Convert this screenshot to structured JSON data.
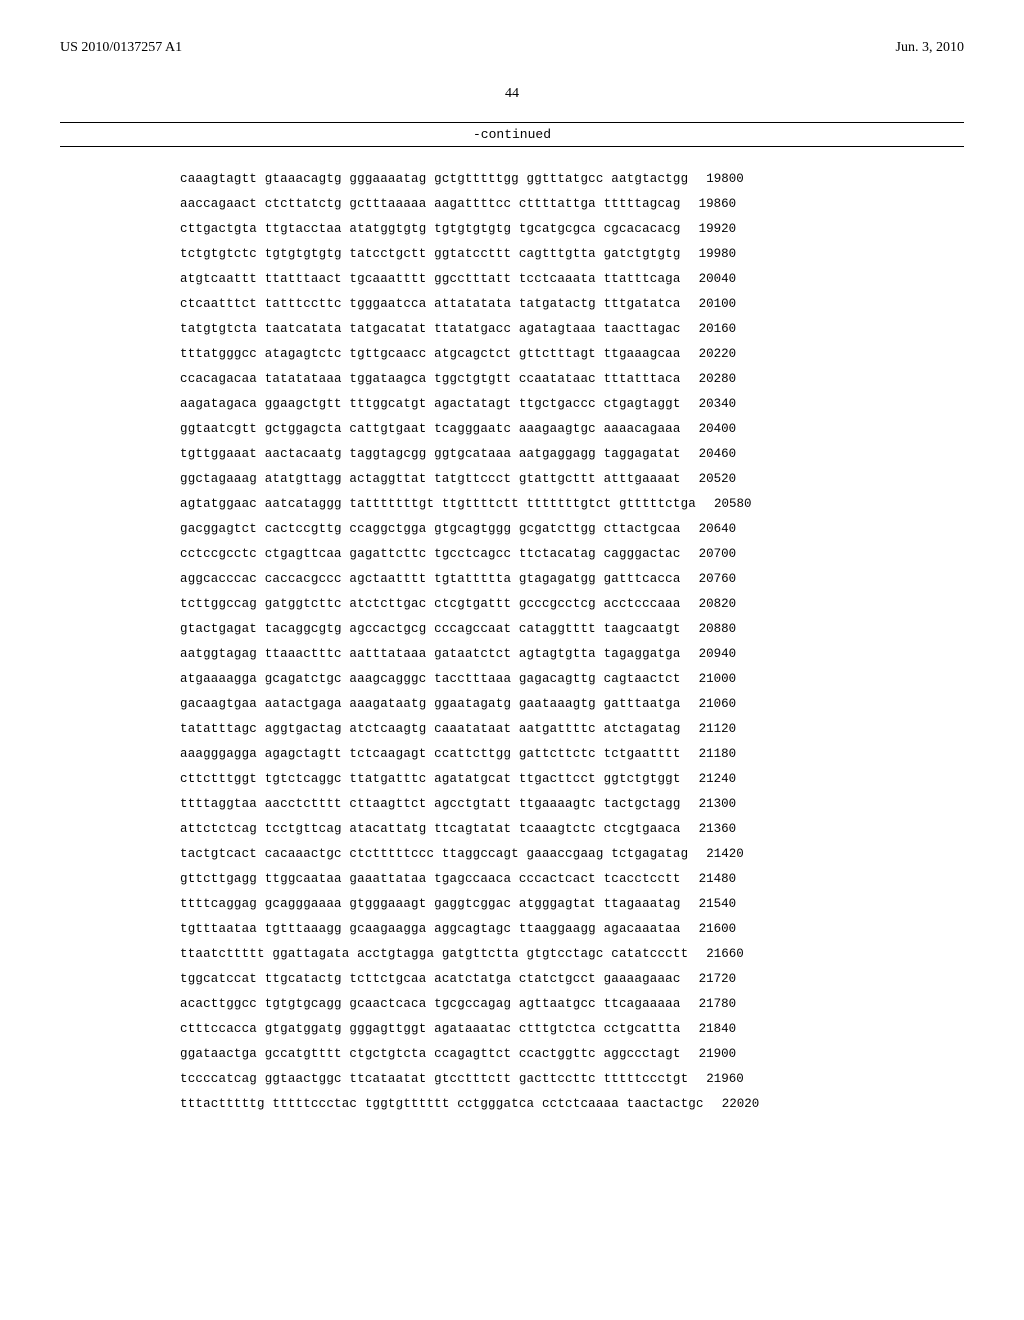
{
  "header": {
    "pub_number": "US 2010/0137257 A1",
    "pub_date": "Jun. 3, 2010"
  },
  "page_number": "44",
  "continued_label": "-continued",
  "sequence": [
    {
      "groups": [
        "caaagtagtt",
        "gtaaacagtg",
        "gggaaaatag",
        "gctgtttttgg",
        "ggtttatgcc",
        "aatgtactgg"
      ],
      "num": "19800"
    },
    {
      "groups": [
        "aaccagaact",
        "ctcttatctg",
        "gctttaaaaa",
        "aagattttcc",
        "cttttattga",
        "tttttagcag"
      ],
      "num": "19860"
    },
    {
      "groups": [
        "cttgactgta",
        "ttgtacctaa",
        "atatggtgtg",
        "tgtgtgtgtg",
        "tgcatgcgca",
        "cgcacacacg"
      ],
      "num": "19920"
    },
    {
      "groups": [
        "tctgtgtctc",
        "tgtgtgtgtg",
        "tatcctgctt",
        "ggtatccttt",
        "cagtttgtta",
        "gatctgtgtg"
      ],
      "num": "19980"
    },
    {
      "groups": [
        "atgtcaattt",
        "ttatttaact",
        "tgcaaatttt",
        "ggcctttatt",
        "tcctcaaata",
        "ttatttcaga"
      ],
      "num": "20040"
    },
    {
      "groups": [
        "ctcaatttct",
        "tatttccttc",
        "tgggaatcca",
        "attatatata",
        "tatgatactg",
        "tttgatatca"
      ],
      "num": "20100"
    },
    {
      "groups": [
        "tatgtgtcta",
        "taatcatata",
        "tatgacatat",
        "ttatatgacc",
        "agatagtaaa",
        "taacttagac"
      ],
      "num": "20160"
    },
    {
      "groups": [
        "tttatgggcc",
        "atagagtctc",
        "tgttgcaacc",
        "atgcagctct",
        "gttctttagt",
        "ttgaaagcaa"
      ],
      "num": "20220"
    },
    {
      "groups": [
        "ccacagacaa",
        "tatatataaa",
        "tggataagca",
        "tggctgtgtt",
        "ccaatataac",
        "tttatttaca"
      ],
      "num": "20280"
    },
    {
      "groups": [
        "aagatagaca",
        "ggaagctgtt",
        "tttggcatgt",
        "agactatagt",
        "ttgctgaccc",
        "ctgagtaggt"
      ],
      "num": "20340"
    },
    {
      "groups": [
        "ggtaatcgtt",
        "gctggagcta",
        "cattgtgaat",
        "tcagggaatc",
        "aaagaagtgc",
        "aaaacagaaa"
      ],
      "num": "20400"
    },
    {
      "groups": [
        "tgttggaaat",
        "aactacaatg",
        "taggtagcgg",
        "ggtgcataaa",
        "aatgaggagg",
        "taggagatat"
      ],
      "num": "20460"
    },
    {
      "groups": [
        "ggctagaaag",
        "atatgttagg",
        "actaggttat",
        "tatgttccct",
        "gtattgcttt",
        "atttgaaaat"
      ],
      "num": "20520"
    },
    {
      "groups": [
        "agtatggaac",
        "aatcataggg",
        "tatttttttgt",
        "ttgttttctt",
        "tttttttgtct",
        "gtttttctga"
      ],
      "num": "20580"
    },
    {
      "groups": [
        "gacggagtct",
        "cactccgttg",
        "ccaggctgga",
        "gtgcagtggg",
        "gcgatcttgg",
        "cttactgcaa"
      ],
      "num": "20640"
    },
    {
      "groups": [
        "cctccgcctc",
        "ctgagttcaa",
        "gagattcttc",
        "tgcctcagcc",
        "ttctacatag",
        "cagggactac"
      ],
      "num": "20700"
    },
    {
      "groups": [
        "aggcacccac",
        "caccacgccc",
        "agctaatttt",
        "tgtattttta",
        "gtagagatgg",
        "gatttcacca"
      ],
      "num": "20760"
    },
    {
      "groups": [
        "tcttggccag",
        "gatggtcttc",
        "atctcttgac",
        "ctcgtgattt",
        "gcccgcctcg",
        "acctcccaaa"
      ],
      "num": "20820"
    },
    {
      "groups": [
        "gtactgagat",
        "tacaggcgtg",
        "agccactgcg",
        "cccagccaat",
        "cataggtttt",
        "taagcaatgt"
      ],
      "num": "20880"
    },
    {
      "groups": [
        "aatggtagag",
        "ttaaactttc",
        "aatttataaa",
        "gataatctct",
        "agtagtgtta",
        "tagaggatga"
      ],
      "num": "20940"
    },
    {
      "groups": [
        "atgaaaagga",
        "gcagatctgc",
        "aaagcagggc",
        "tacctttaaa",
        "gagacagttg",
        "cagtaactct"
      ],
      "num": "21000"
    },
    {
      "groups": [
        "gacaagtgaa",
        "aatactgaga",
        "aaagataatg",
        "ggaatagatg",
        "gaataaagtg",
        "gatttaatga"
      ],
      "num": "21060"
    },
    {
      "groups": [
        "tatatttagc",
        "aggtgactag",
        "atctcaagtg",
        "caaatataat",
        "aatgattttc",
        "atctagatag"
      ],
      "num": "21120"
    },
    {
      "groups": [
        "aaagggagga",
        "agagctagtt",
        "tctcaagagt",
        "ccattcttgg",
        "gattcttctc",
        "tctgaatttt"
      ],
      "num": "21180"
    },
    {
      "groups": [
        "cttctttggt",
        "tgtctcaggc",
        "ttatgatttc",
        "agatatgcat",
        "ttgacttcct",
        "ggtctgtggt"
      ],
      "num": "21240"
    },
    {
      "groups": [
        "ttttaggtaa",
        "aacctctttt",
        "cttaagttct",
        "agcctgtatt",
        "ttgaaaagtc",
        "tactgctagg"
      ],
      "num": "21300"
    },
    {
      "groups": [
        "attctctcag",
        "tcctgttcag",
        "atacattatg",
        "ttcagtatat",
        "tcaaagtctc",
        "ctcgtgaaca"
      ],
      "num": "21360"
    },
    {
      "groups": [
        "tactgtcact",
        "cacaaactgc",
        "ctctttttccc",
        "ttaggccagt",
        "gaaaccgaag",
        "tctgagatag"
      ],
      "num": "21420"
    },
    {
      "groups": [
        "gttcttgagg",
        "ttggcaataa",
        "gaaattataa",
        "tgagccaaca",
        "cccactcact",
        "tcacctcctt"
      ],
      "num": "21480"
    },
    {
      "groups": [
        "ttttcaggag",
        "gcagggaaaa",
        "gtgggaaagt",
        "gaggtcggac",
        "atgggagtat",
        "ttagaaatag"
      ],
      "num": "21540"
    },
    {
      "groups": [
        "tgtttaataa",
        "tgtttaaagg",
        "gcaagaagga",
        "aggcagtagc",
        "ttaaggaagg",
        "agacaaataa"
      ],
      "num": "21600"
    },
    {
      "groups": [
        "ttaatcttttt",
        "ggattagata",
        "acctgtagga",
        "gatgttctta",
        "gtgtcctagc",
        "catatccctt"
      ],
      "num": "21660"
    },
    {
      "groups": [
        "tggcatccat",
        "ttgcatactg",
        "tcttctgcaa",
        "acatctatga",
        "ctatctgcct",
        "gaaaagaaac"
      ],
      "num": "21720"
    },
    {
      "groups": [
        "acacttggcc",
        "tgtgtgcagg",
        "gcaactcaca",
        "tgcgccagag",
        "agttaatgcc",
        "ttcagaaaaa"
      ],
      "num": "21780"
    },
    {
      "groups": [
        "ctttccacca",
        "gtgatggatg",
        "gggagttggt",
        "agataaatac",
        "ctttgtctca",
        "cctgcattta"
      ],
      "num": "21840"
    },
    {
      "groups": [
        "ggataactga",
        "gccatgtttt",
        "ctgctgtcta",
        "ccagagttct",
        "ccactggttc",
        "aggccctagt"
      ],
      "num": "21900"
    },
    {
      "groups": [
        "tccccatcag",
        "ggtaactggc",
        "ttcataatat",
        "gtcctttctt",
        "gacttccttc",
        "tttttccctgt"
      ],
      "num": "21960"
    },
    {
      "groups": [
        "tttactttttg",
        "tttttccctac",
        "tggtgtttttt",
        "cctgggatca",
        "cctctcaaaa",
        "taactactgc"
      ],
      "num": "22020"
    }
  ]
}
